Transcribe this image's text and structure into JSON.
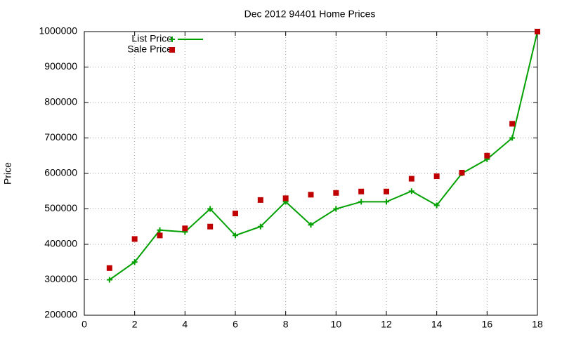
{
  "chart_data": {
    "type": "line",
    "title": "Dec 2012 94401 Home Prices",
    "y_label": "Price",
    "x": [
      1,
      2,
      3,
      4,
      5,
      6,
      7,
      8,
      9,
      10,
      11,
      12,
      13,
      14,
      15,
      16,
      17,
      18
    ],
    "series": [
      {
        "name": "List Price",
        "color": "#00a000",
        "mode": "lines+markers",
        "marker": "plus",
        "values": [
          300000,
          350000,
          440000,
          435000,
          500000,
          425000,
          450000,
          520000,
          455000,
          500000,
          520000,
          520000,
          550000,
          510000,
          600000,
          640000,
          700000,
          1000000
        ]
      },
      {
        "name": "Sale Price",
        "color": "#c00000",
        "mode": "markers",
        "marker": "square",
        "values": [
          333000,
          415000,
          425000,
          445000,
          450000,
          487000,
          525000,
          530000,
          540000,
          545000,
          549000,
          549000,
          585000,
          592000,
          602000,
          650000,
          740000,
          1000000
        ]
      }
    ],
    "xlim": [
      0,
      18
    ],
    "xticks": [
      0,
      2,
      4,
      6,
      8,
      10,
      12,
      14,
      16,
      18
    ],
    "ylim": [
      200000,
      1000000
    ],
    "yticks": [
      200000,
      300000,
      400000,
      500000,
      600000,
      700000,
      800000,
      900000,
      1000000
    ],
    "grid": true,
    "legend": "top-left"
  }
}
